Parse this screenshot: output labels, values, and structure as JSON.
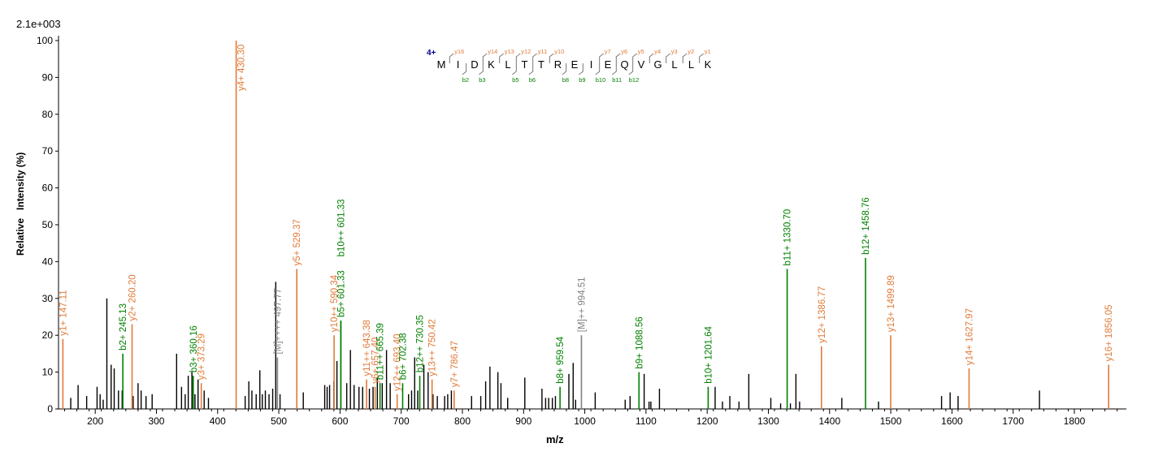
{
  "chart_data": {
    "type": "bar",
    "scale_label": "2.1e+003",
    "xlabel": "m/z",
    "ylabel": "Relative   Intensity (%)",
    "xlim": [
      140,
      1885
    ],
    "ylim": [
      0,
      100
    ],
    "x_ticks": [
      200,
      300,
      400,
      500,
      600,
      700,
      800,
      900,
      1000,
      1100,
      1200,
      1300,
      1400,
      1500,
      1600,
      1700,
      1800
    ],
    "y_ticks": [
      0,
      10,
      20,
      30,
      40,
      50,
      60,
      70,
      80,
      90,
      100
    ],
    "colors": {
      "y_ion": "#e07b39",
      "b_ion": "#008000",
      "precursor": "#808080",
      "charge": "#00008b",
      "noise": "#000000"
    },
    "peptide": {
      "charge": "4+",
      "sequence": [
        "M",
        "I",
        "D",
        "K",
        "L",
        "T",
        "T",
        "R",
        "E",
        "I",
        "E",
        "Q",
        "V",
        "G",
        "L",
        "L",
        "K"
      ],
      "y_labels": [
        "y16",
        "y14",
        "y13",
        "y12",
        "y11",
        "y10",
        "y7",
        "y6",
        "y5",
        "y4",
        "y3",
        "y2",
        "y1"
      ],
      "y_positions": [
        1,
        3,
        4,
        5,
        6,
        7,
        10,
        11,
        12,
        13,
        14,
        15,
        16
      ],
      "b_labels": [
        "b2",
        "b3",
        "b5",
        "b6",
        "b8",
        "b9",
        "b10",
        "b11",
        "b12"
      ],
      "b_positions": [
        2,
        3,
        5,
        6,
        8,
        9,
        10,
        11,
        12
      ]
    },
    "annotated_peaks": [
      {
        "mz": 147.11,
        "intensity": 19,
        "label": "y1+ 147.11",
        "ion": "y"
      },
      {
        "mz": 245.13,
        "intensity": 15,
        "label": "b2+ 245.13",
        "ion": "b"
      },
      {
        "mz": 260.2,
        "intensity": 23,
        "label": "y2+ 260.20",
        "ion": "y"
      },
      {
        "mz": 360.16,
        "intensity": 9,
        "label": "b3+ 360.16",
        "ion": "b"
      },
      {
        "mz": 373.29,
        "intensity": 7,
        "label": "y3+ 373.29",
        "ion": "y"
      },
      {
        "mz": 430.3,
        "intensity": 100,
        "label": "y4+ 430.30",
        "ion": "y"
      },
      {
        "mz": 497.77,
        "intensity": 14,
        "label": "[M]++++ 497.77",
        "ion": "p"
      },
      {
        "mz": 529.37,
        "intensity": 38,
        "label": "y5+ 529.37",
        "ion": "y"
      },
      {
        "mz": 590.34,
        "intensity": 20,
        "label": "y10++ 590.34",
        "ion": "y"
      },
      {
        "mz": 601.33,
        "intensity": 24,
        "label": "b5+ 601.33",
        "ion": "b"
      },
      {
        "mz": 601.33,
        "intensity": 24,
        "label": "b10++ 601.33",
        "ion": "b"
      },
      {
        "mz": 643.38,
        "intensity": 8,
        "label": "y11++ 643.38",
        "ion": "y"
      },
      {
        "mz": 657.4,
        "intensity": 6,
        "label": "y6+ 657.40",
        "ion": "y"
      },
      {
        "mz": 665.39,
        "intensity": 7,
        "label": "b11++ 665.39",
        "ion": "b"
      },
      {
        "mz": 693.4,
        "intensity": 4,
        "label": "y12++ 693.40",
        "ion": "y"
      },
      {
        "mz": 702.38,
        "intensity": 7,
        "label": "b6+ 702.38",
        "ion": "b"
      },
      {
        "mz": 730.35,
        "intensity": 9,
        "label": "b12++ 730.35",
        "ion": "b"
      },
      {
        "mz": 750.42,
        "intensity": 8,
        "label": "y13++ 750.42",
        "ion": "y"
      },
      {
        "mz": 786.47,
        "intensity": 5,
        "label": "y7+ 786.47",
        "ion": "y"
      },
      {
        "mz": 959.54,
        "intensity": 6,
        "label": "b8+ 959.54",
        "ion": "b"
      },
      {
        "mz": 994.51,
        "intensity": 20,
        "label": "[M]++ 994.51",
        "ion": "p"
      },
      {
        "mz": 1088.56,
        "intensity": 10,
        "label": "b9+ 1088.56",
        "ion": "b"
      },
      {
        "mz": 1201.64,
        "intensity": 6,
        "label": "b10+ 1201.64",
        "ion": "b"
      },
      {
        "mz": 1330.7,
        "intensity": 38,
        "label": "b11+ 1330.70",
        "ion": "b"
      },
      {
        "mz": 1386.77,
        "intensity": 17,
        "label": "y12+ 1386.77",
        "ion": "y"
      },
      {
        "mz": 1458.76,
        "intensity": 41,
        "label": "b12+ 1458.76",
        "ion": "b"
      },
      {
        "mz": 1499.89,
        "intensity": 20,
        "label": "y13+ 1499.89",
        "ion": "y"
      },
      {
        "mz": 1627.97,
        "intensity": 11,
        "label": "y14+ 1627.97",
        "ion": "y"
      },
      {
        "mz": 1856.05,
        "intensity": 12,
        "label": "y16+ 1856.05",
        "ion": "y"
      }
    ],
    "noise_peaks": [
      [
        160,
        3
      ],
      [
        172,
        6.5
      ],
      [
        186,
        3.5
      ],
      [
        203,
        6
      ],
      [
        208,
        4
      ],
      [
        213,
        2.5
      ],
      [
        219,
        30
      ],
      [
        226,
        12
      ],
      [
        231,
        11
      ],
      [
        238,
        5
      ],
      [
        244,
        5
      ],
      [
        262,
        3.5
      ],
      [
        270,
        7
      ],
      [
        275,
        5
      ],
      [
        283,
        3.5
      ],
      [
        293,
        4
      ],
      [
        333,
        15
      ],
      [
        341,
        6
      ],
      [
        347,
        4
      ],
      [
        352,
        9
      ],
      [
        358,
        10
      ],
      [
        363,
        4
      ],
      [
        368,
        8
      ],
      [
        378,
        5
      ],
      [
        385,
        3
      ],
      [
        445,
        3.5
      ],
      [
        451,
        7.5
      ],
      [
        456,
        5
      ],
      [
        463,
        4
      ],
      [
        469,
        10.5
      ],
      [
        473,
        4
      ],
      [
        478,
        5
      ],
      [
        484,
        4
      ],
      [
        490,
        5.5
      ],
      [
        495,
        34.5
      ],
      [
        502,
        4
      ],
      [
        540,
        4.5
      ],
      [
        575,
        6.5
      ],
      [
        579,
        6
      ],
      [
        583,
        6.5
      ],
      [
        590,
        7.5
      ],
      [
        595,
        13
      ],
      [
        611,
        7
      ],
      [
        617,
        16
      ],
      [
        623,
        6.5
      ],
      [
        631,
        6
      ],
      [
        637,
        6
      ],
      [
        648,
        5.5
      ],
      [
        654,
        6
      ],
      [
        661,
        8.5
      ],
      [
        669,
        7
      ],
      [
        676,
        16
      ],
      [
        682,
        7
      ],
      [
        712,
        4
      ],
      [
        717,
        5
      ],
      [
        722,
        14
      ],
      [
        727,
        5
      ],
      [
        737,
        12
      ],
      [
        744,
        10
      ],
      [
        752,
        4
      ],
      [
        759,
        3.5
      ],
      [
        771,
        3.5
      ],
      [
        776,
        4
      ],
      [
        782,
        5
      ],
      [
        815,
        3.5
      ],
      [
        830,
        3.5
      ],
      [
        838,
        7.5
      ],
      [
        845,
        11.5
      ],
      [
        858,
        10
      ],
      [
        863,
        7
      ],
      [
        874,
        3
      ],
      [
        902,
        8.5
      ],
      [
        930,
        5.5
      ],
      [
        936,
        3
      ],
      [
        941,
        3
      ],
      [
        947,
        3
      ],
      [
        952,
        3.5
      ],
      [
        974,
        9.5
      ],
      [
        981,
        12.5
      ],
      [
        985,
        2.5
      ],
      [
        1017,
        4.5
      ],
      [
        1066,
        2.5
      ],
      [
        1074,
        3.5
      ],
      [
        1097,
        9.5
      ],
      [
        1105,
        2
      ],
      [
        1108,
        2
      ],
      [
        1122,
        5.5
      ],
      [
        1213,
        6
      ],
      [
        1225,
        2
      ],
      [
        1237,
        3.5
      ],
      [
        1252,
        2
      ],
      [
        1268,
        9.5
      ],
      [
        1304,
        3
      ],
      [
        1320,
        1.5
      ],
      [
        1336,
        1.5
      ],
      [
        1345,
        9.5
      ],
      [
        1351,
        2
      ],
      [
        1420,
        3
      ],
      [
        1480,
        2
      ],
      [
        1583,
        3.5
      ],
      [
        1597,
        4.5
      ],
      [
        1610,
        3.5
      ],
      [
        1743,
        5
      ]
    ]
  }
}
